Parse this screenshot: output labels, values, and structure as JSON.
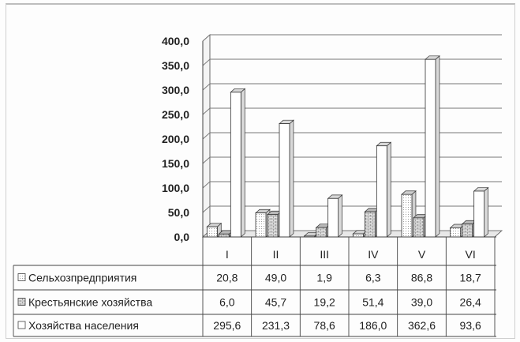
{
  "chart_data": {
    "type": "bar",
    "categories": [
      "I",
      "II",
      "III",
      "IV",
      "V",
      "VI"
    ],
    "ylim": [
      0,
      400
    ],
    "yticks": [
      "0,0",
      "50,0",
      "100,0",
      "150,0",
      "200,0",
      "250,0",
      "300,0",
      "350,0",
      "400,0"
    ],
    "grid": true,
    "legend_placement": "table-left",
    "series": [
      {
        "name": "Сельхозпредприятия",
        "values": [
          20.8,
          49.0,
          1.9,
          6.3,
          86.8,
          18.7
        ],
        "labels": [
          "20,8",
          "49,0",
          "1,9",
          "6,3",
          "86,8",
          "18,7"
        ],
        "pattern": "dots"
      },
      {
        "name": "Крестьянские хозяйства",
        "values": [
          6.0,
          45.7,
          19.2,
          51.4,
          39.0,
          26.4
        ],
        "labels": [
          "6,0",
          "45,7",
          "19,2",
          "51,4",
          "39,0",
          "26,4"
        ],
        "pattern": "bricks"
      },
      {
        "name": "Хозяйства населения",
        "values": [
          295.6,
          231.3,
          78.6,
          186.0,
          362.6,
          93.6
        ],
        "labels": [
          "295,6",
          "231,3",
          "78,6",
          "186,0",
          "362,6",
          "93,6"
        ],
        "pattern": "plain"
      }
    ]
  }
}
